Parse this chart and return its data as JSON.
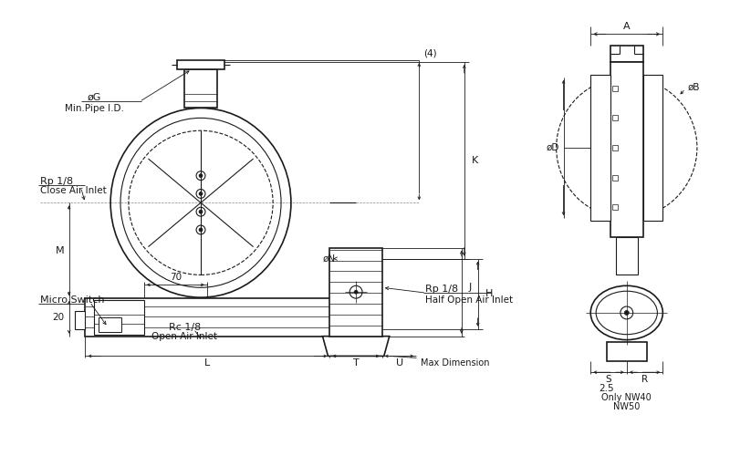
{
  "bg": "#ffffff",
  "lc": "#1a1a1a",
  "fig_w": 8.0,
  "fig_h": 5.0,
  "dpi": 100,
  "lbl": {
    "phiG": "øG",
    "min_pipe": "Min.Pipe I.D.",
    "rp18_close": "Rp 1/8",
    "close_air": "Close Air Inlet",
    "micro_sw": "Micro Switch",
    "rc18": "Rc 1/8",
    "open_air": "Open Air Inlet",
    "d70": "70",
    "d20": "20",
    "L": "L",
    "T": "T",
    "U": "U",
    "max_dim": "Max Dimension",
    "phiN": "øN",
    "rp18_half": "Rp 1/8",
    "half_open": "Half Open Air Inlet",
    "K": "K",
    "H": "H",
    "J": "J",
    "M": "M",
    "par4": "(4)",
    "A": "A",
    "phiB": "øB",
    "phiD": "øD",
    "S": "S",
    "R": "R",
    "d25": "2.5",
    "only_nw": "Only NW40",
    "nw50": "NW50"
  }
}
